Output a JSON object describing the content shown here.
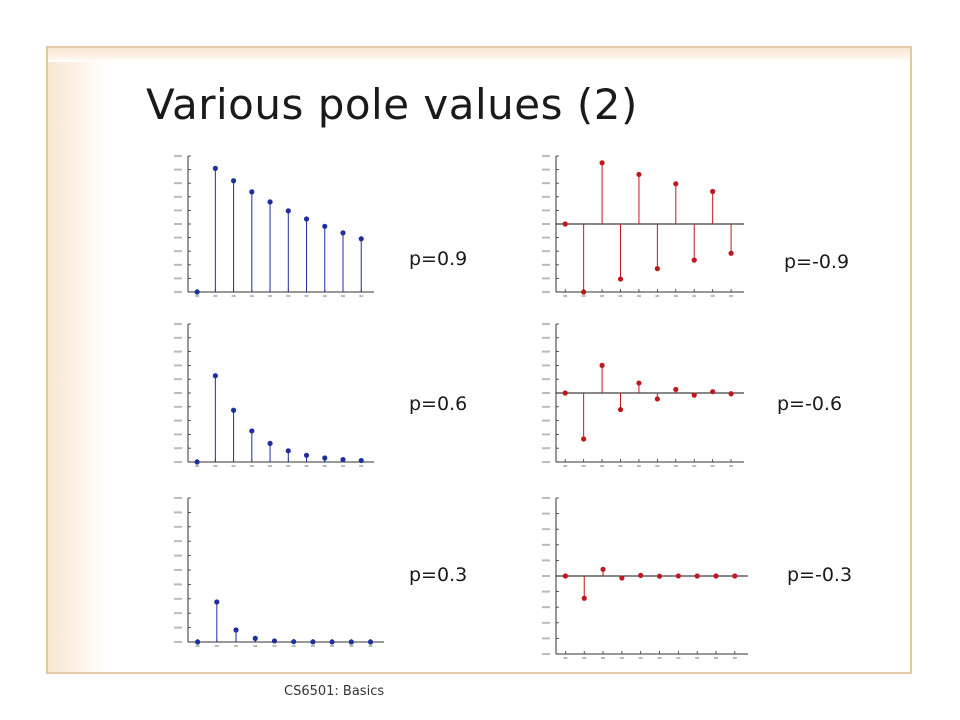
{
  "slide": {
    "title": "Various pole values (2)",
    "footer": "CS6501: Basics",
    "labels": [
      "p=0.9",
      "p=-0.9",
      "p=0.6",
      "p=-0.6",
      "p=0.3",
      "p=-0.3"
    ]
  },
  "colors": {
    "positive": "#1f2f9f",
    "negative": "#c0171d",
    "frame": "#e2c9a6"
  },
  "chart_data": [
    {
      "type": "stem",
      "pole": 0.9,
      "x": [
        0,
        1,
        2,
        3,
        4,
        5,
        6,
        7,
        8,
        9
      ],
      "values": [
        0,
        1,
        0.9,
        0.81,
        0.729,
        0.6561,
        0.59049,
        0.531441,
        0.4782969,
        0.43046721
      ],
      "ylim": [
        0,
        1.1
      ]
    },
    {
      "type": "stem",
      "pole": -0.9,
      "x": [
        0,
        1,
        2,
        3,
        4,
        5,
        6,
        7,
        8,
        9
      ],
      "values": [
        0,
        -1,
        0.9,
        -0.81,
        0.729,
        -0.6561,
        0.59049,
        -0.531441,
        0.4782969,
        -0.43046721
      ],
      "ylim": [
        -1,
        1
      ]
    },
    {
      "type": "stem",
      "pole": 0.6,
      "x": [
        0,
        1,
        2,
        3,
        4,
        5,
        6,
        7,
        8,
        9
      ],
      "values": [
        0,
        1,
        0.6,
        0.36,
        0.216,
        0.1296,
        0.07776,
        0.046656,
        0.0279936,
        0.01679616
      ],
      "ylim": [
        0,
        1.6
      ]
    },
    {
      "type": "stem",
      "pole": -0.6,
      "x": [
        0,
        1,
        2,
        3,
        4,
        5,
        6,
        7,
        8,
        9
      ],
      "values": [
        0,
        -1,
        0.6,
        -0.36,
        0.216,
        -0.1296,
        0.07776,
        -0.046656,
        0.0279936,
        -0.01679616
      ],
      "ylim": [
        -1.5,
        1.5
      ]
    },
    {
      "type": "stem",
      "pole": 0.3,
      "x": [
        0,
        1,
        2,
        3,
        4,
        5,
        6,
        7,
        8,
        9
      ],
      "values": [
        0,
        1,
        0.3,
        0.09,
        0.027,
        0.0081,
        0.00243,
        0.000729,
        0.0002187,
        6.561e-05
      ],
      "ylim": [
        0,
        3.6
      ]
    },
    {
      "type": "stem",
      "pole": -0.3,
      "x": [
        0,
        1,
        2,
        3,
        4,
        5,
        6,
        7,
        8,
        9
      ],
      "values": [
        0,
        -1,
        0.3,
        -0.09,
        0.027,
        -0.0081,
        0.00243,
        -0.000729,
        0.0002187,
        -6.561e-05
      ],
      "ylim": [
        -3.5,
        3.5
      ]
    }
  ]
}
